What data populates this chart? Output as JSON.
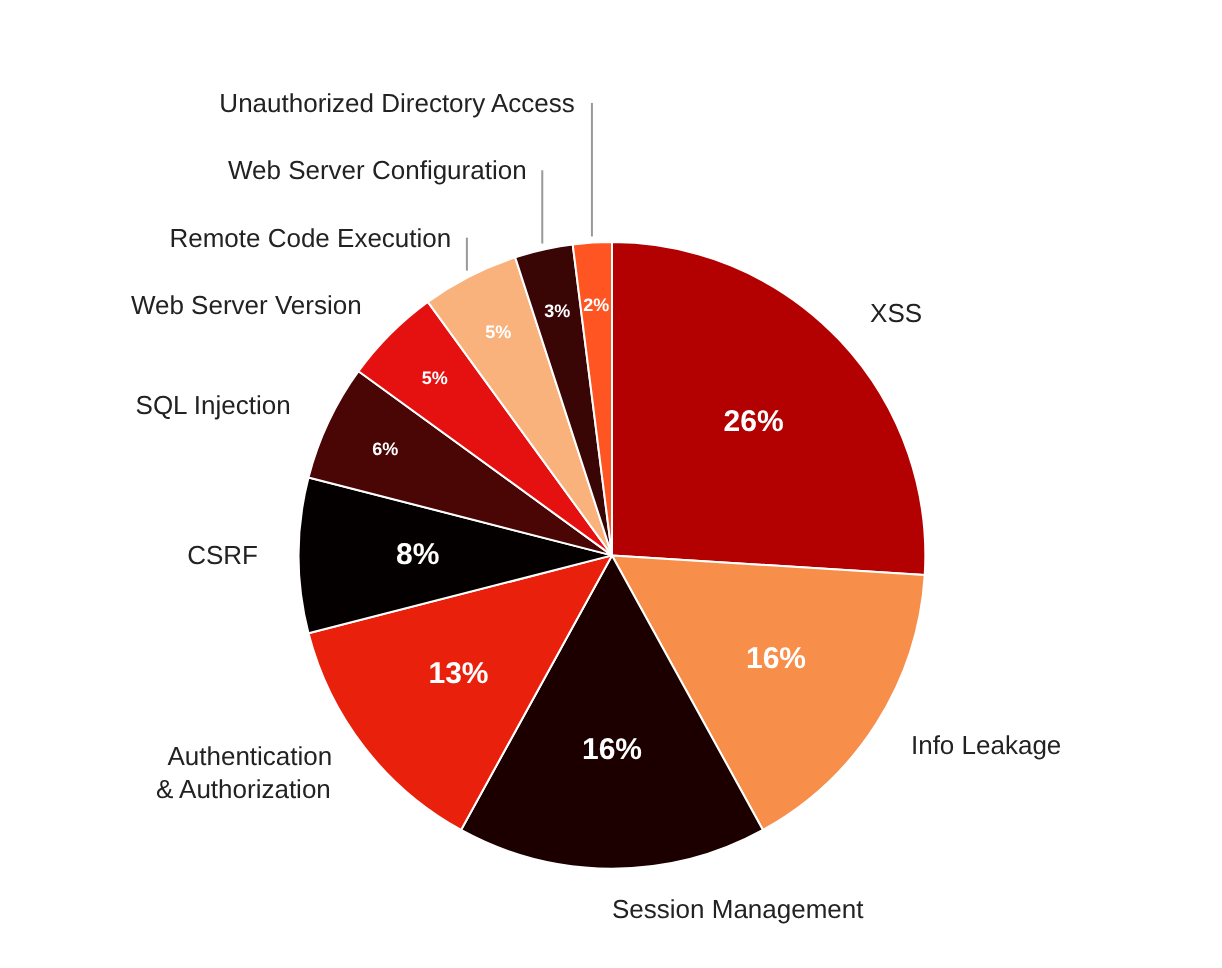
{
  "chart_data": {
    "type": "pie",
    "categories": [
      "XSS",
      "Info Leakage",
      "Session Management",
      "Authentication & Authorization",
      "CSRF",
      "SQL Injection",
      "Web Server Version",
      "Remote Code Execution",
      "Web Server Configuration",
      "Unauthorized Directory Access"
    ],
    "values": [
      26,
      16,
      16,
      13,
      8,
      6,
      5,
      5,
      3,
      2
    ],
    "colors": [
      "#b30000",
      "#f78f4b",
      "#1c0000",
      "#e8200c",
      "#050000",
      "#4a0505",
      "#e51010",
      "#f9b27c",
      "#3a0505",
      "#ff5522"
    ],
    "value_labels": [
      "26%",
      "16%",
      "16%",
      "13%",
      "8%",
      "6%",
      "5%",
      "5%",
      "3%",
      "2%"
    ]
  }
}
